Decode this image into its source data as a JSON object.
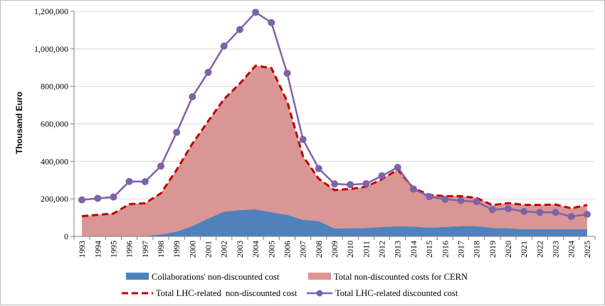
{
  "chart_data": {
    "type": "area",
    "ylabel": "Thousand Euro",
    "ylim": [
      0,
      1200000
    ],
    "ytick_values": [
      0,
      200000,
      400000,
      600000,
      800000,
      1000000,
      1200000
    ],
    "ytick_labels": [
      "0",
      "200,000",
      "400,000",
      "600,000",
      "800,000",
      "1,000,000",
      "1,200,000"
    ],
    "categories": [
      "1993",
      "1994",
      "1995",
      "1996",
      "1997",
      "1998",
      "1999",
      "2000",
      "2001",
      "2002",
      "2003",
      "2004",
      "2005",
      "2006",
      "2007",
      "2008",
      "2009",
      "2010",
      "2011",
      "2012",
      "2013",
      "2014",
      "2015",
      "2016",
      "2017",
      "2018",
      "2019",
      "2020",
      "2021",
      "2022",
      "2023",
      "2024",
      "2025"
    ],
    "series": [
      {
        "name": "Collaborations' non-discounted cost",
        "kind": "stacked-area",
        "color": "#4f81bd",
        "values": [
          0,
          0,
          0,
          0,
          2000,
          10000,
          25000,
          55000,
          95000,
          132000,
          140000,
          145000,
          128000,
          115000,
          88000,
          82000,
          42000,
          43000,
          45000,
          50000,
          54000,
          52000,
          47000,
          50000,
          55000,
          55000,
          45000,
          43000,
          38000,
          38000,
          38000,
          38000,
          38000
        ]
      },
      {
        "name": "Total non-discounted costs for CERN",
        "kind": "stacked-area",
        "color": "#d99694",
        "values": [
          108000,
          115000,
          122000,
          172000,
          175000,
          220000,
          330000,
          440000,
          520000,
          600000,
          675000,
          765000,
          770000,
          605000,
          340000,
          225000,
          205000,
          210000,
          220000,
          255000,
          302000,
          205000,
          175000,
          165000,
          160000,
          150000,
          122000,
          135000,
          130000,
          130000,
          132000,
          112000,
          130000
        ]
      },
      {
        "name": "Total LHC-related  non-discounted cost",
        "kind": "dashed-line",
        "color": "#c00000",
        "values": [
          108000,
          115000,
          122000,
          172000,
          177000,
          230000,
          355000,
          495000,
          615000,
          732000,
          815000,
          910000,
          898000,
          720000,
          428000,
          307000,
          247000,
          253000,
          265000,
          305000,
          356000,
          257000,
          222000,
          215000,
          215000,
          205000,
          167000,
          178000,
          168000,
          168000,
          170000,
          150000,
          168000
        ]
      },
      {
        "name": "Total LHC-related discounted cost",
        "kind": "line-markers",
        "color": "#7f62a8",
        "values": [
          195000,
          203000,
          210000,
          293000,
          292000,
          375000,
          555000,
          745000,
          875000,
          1015000,
          1103000,
          1195000,
          1140000,
          870000,
          517000,
          362000,
          280000,
          276000,
          281000,
          323000,
          368000,
          253000,
          212000,
          198000,
          191000,
          185000,
          143000,
          148000,
          133000,
          128000,
          128000,
          106000,
          118000
        ]
      }
    ]
  }
}
